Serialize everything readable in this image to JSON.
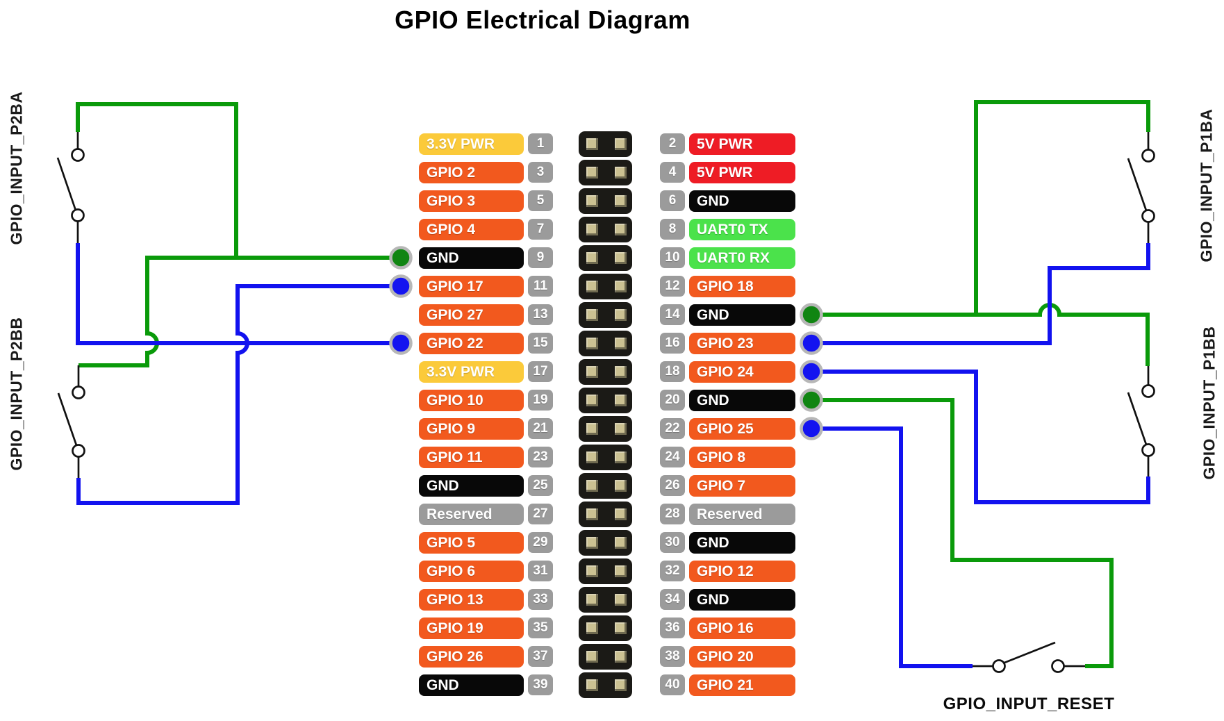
{
  "title": "GPIO Electrical Diagram",
  "switch_labels": {
    "p2ba": "GPIO_INPUT_P2BA",
    "p2bb": "GPIO_INPUT_P2BB",
    "p1ba": "GPIO_INPUT_P1BA",
    "p1bb": "GPIO_INPUT_P1BB",
    "reset": "GPIO_INPUT_RESET"
  },
  "colors": {
    "pin_types": {
      "gpio": "#f2591e",
      "power3v3": "#fbca3a",
      "power5v": "#ee1c25",
      "ground": "#080808",
      "uart": "#4be24b",
      "reserved": "#9b9b9b"
    },
    "numbox": "#9b9b9b",
    "wire_green": "#0a9a0a",
    "wire_blue": "#1212ef",
    "dot_green": "#108512",
    "dot_blue": "#1414f0",
    "dot_ring": "#b7b7b7"
  },
  "pins": {
    "left": [
      {
        "pin": "1",
        "label": "3.3V PWR",
        "type": "power3v3"
      },
      {
        "pin": "3",
        "label": "GPIO 2",
        "type": "gpio"
      },
      {
        "pin": "5",
        "label": "GPIO 3",
        "type": "gpio"
      },
      {
        "pin": "7",
        "label": "GPIO 4",
        "type": "gpio"
      },
      {
        "pin": "9",
        "label": "GND",
        "type": "ground"
      },
      {
        "pin": "11",
        "label": "GPIO 17",
        "type": "gpio"
      },
      {
        "pin": "13",
        "label": "GPIO 27",
        "type": "gpio"
      },
      {
        "pin": "15",
        "label": "GPIO 22",
        "type": "gpio"
      },
      {
        "pin": "17",
        "label": "3.3V PWR",
        "type": "power3v3"
      },
      {
        "pin": "19",
        "label": "GPIO 10",
        "type": "gpio"
      },
      {
        "pin": "21",
        "label": "GPIO 9",
        "type": "gpio"
      },
      {
        "pin": "23",
        "label": "GPIO 11",
        "type": "gpio"
      },
      {
        "pin": "25",
        "label": "GND",
        "type": "ground"
      },
      {
        "pin": "27",
        "label": "Reserved",
        "type": "reserved"
      },
      {
        "pin": "29",
        "label": "GPIO 5",
        "type": "gpio"
      },
      {
        "pin": "31",
        "label": "GPIO 6",
        "type": "gpio"
      },
      {
        "pin": "33",
        "label": "GPIO 13",
        "type": "gpio"
      },
      {
        "pin": "35",
        "label": "GPIO 19",
        "type": "gpio"
      },
      {
        "pin": "37",
        "label": "GPIO 26",
        "type": "gpio"
      },
      {
        "pin": "39",
        "label": "GND",
        "type": "ground"
      }
    ],
    "right": [
      {
        "pin": "2",
        "label": "5V PWR",
        "type": "power5v"
      },
      {
        "pin": "4",
        "label": "5V PWR",
        "type": "power5v"
      },
      {
        "pin": "6",
        "label": "GND",
        "type": "ground"
      },
      {
        "pin": "8",
        "label": "UART0 TX",
        "type": "uart"
      },
      {
        "pin": "10",
        "label": "UART0 RX",
        "type": "uart"
      },
      {
        "pin": "12",
        "label": "GPIO 18",
        "type": "gpio"
      },
      {
        "pin": "14",
        "label": "GND",
        "type": "ground"
      },
      {
        "pin": "16",
        "label": "GPIO 23",
        "type": "gpio"
      },
      {
        "pin": "18",
        "label": "GPIO 24",
        "type": "gpio"
      },
      {
        "pin": "20",
        "label": "GND",
        "type": "ground"
      },
      {
        "pin": "22",
        "label": "GPIO 25",
        "type": "gpio"
      },
      {
        "pin": "24",
        "label": "GPIO 8",
        "type": "gpio"
      },
      {
        "pin": "26",
        "label": "GPIO 7",
        "type": "gpio"
      },
      {
        "pin": "28",
        "label": "Reserved",
        "type": "reserved"
      },
      {
        "pin": "30",
        "label": "GND",
        "type": "ground"
      },
      {
        "pin": "32",
        "label": "GPIO 12",
        "type": "gpio"
      },
      {
        "pin": "34",
        "label": "GND",
        "type": "ground"
      },
      {
        "pin": "36",
        "label": "GPIO 16",
        "type": "gpio"
      },
      {
        "pin": "38",
        "label": "GPIO 20",
        "type": "gpio"
      },
      {
        "pin": "40",
        "label": "GPIO 21",
        "type": "gpio"
      }
    ]
  },
  "connections": {
    "left": [
      {
        "pin": "9",
        "row": 5,
        "color": "green"
      },
      {
        "pin": "11",
        "row": 6,
        "color": "blue"
      },
      {
        "pin": "15",
        "row": 8,
        "color": "blue"
      }
    ],
    "right": [
      {
        "pin": "14",
        "row": 7,
        "color": "green"
      },
      {
        "pin": "16",
        "row": 8,
        "color": "blue"
      },
      {
        "pin": "18",
        "row": 9,
        "color": "blue"
      },
      {
        "pin": "20",
        "row": 10,
        "color": "green"
      },
      {
        "pin": "22",
        "row": 11,
        "color": "blue"
      }
    ]
  }
}
